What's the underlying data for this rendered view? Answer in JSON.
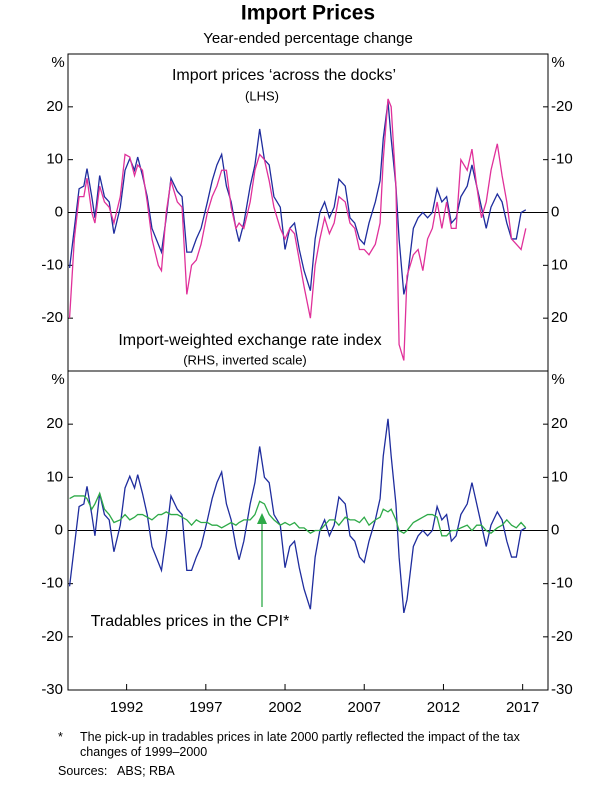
{
  "title": "Import Prices",
  "subtitle": "Year-ended percentage change",
  "notes": {
    "marker": "*",
    "footnote": "The pick-up in tradables prices in late 2000 partly reflected the impact of the tax changes of 1999–2000",
    "sources": "Sources:   ABS; RBA"
  },
  "chart_data": [
    {
      "type": "line",
      "ylabel": "%",
      "y2label": "%",
      "xlim": [
        1988.3,
        2018.6
      ],
      "ylim": [
        -30,
        30
      ],
      "yticks": [
        -20,
        -10,
        0,
        10,
        20
      ],
      "y2lim": [
        30,
        -30
      ],
      "y2ticks": [
        -20,
        -10,
        0,
        10,
        20
      ],
      "annotations": [
        "(LHS)",
        "(RHS, inverted scale)"
      ],
      "x": [
        1988.4,
        1988.7,
        1989.0,
        1989.3,
        1989.5,
        1989.8,
        1990.0,
        1990.3,
        1990.6,
        1990.9,
        1991.2,
        1991.6,
        1991.9,
        1992.2,
        1992.5,
        1992.7,
        1993.0,
        1993.3,
        1993.6,
        1994.0,
        1994.2,
        1994.5,
        1994.8,
        1995.2,
        1995.5,
        1995.8,
        1996.1,
        1996.4,
        1996.7,
        1997.1,
        1997.4,
        1997.7,
        1998.0,
        1998.3,
        1998.6,
        1998.9,
        1999.1,
        1999.4,
        1999.8,
        2000.1,
        2000.4,
        2000.7,
        2001.0,
        2001.3,
        2001.7,
        2002.0,
        2002.3,
        2002.6,
        2002.9,
        2003.2,
        2003.6,
        2003.9,
        2004.2,
        2004.5,
        2004.8,
        2005.1,
        2005.4,
        2005.8,
        2006.1,
        2006.4,
        2006.7,
        2007.0,
        2007.3,
        2007.7,
        2008.0,
        2008.2,
        2008.5,
        2008.7,
        2009.0,
        2009.2,
        2009.5,
        2009.7,
        2010.1,
        2010.4,
        2010.7,
        2011.0,
        2011.3,
        2011.6,
        2011.9,
        2012.2,
        2012.5,
        2012.8,
        2013.1,
        2013.5,
        2013.8,
        2014.1,
        2014.4,
        2014.7,
        2015.0,
        2015.4,
        2015.7,
        2016.0,
        2016.3,
        2016.6,
        2016.9,
        2017.2
      ],
      "series": [
        {
          "name": "Import prices ‘across the docks’",
          "color": "#1f2d9e",
          "values": [
            -10.5,
            -3,
            4.5,
            5,
            8.3,
            3,
            -1,
            7,
            3,
            2,
            -4,
            1,
            8,
            10.2,
            8,
            10.5,
            7,
            3,
            -3,
            -6,
            -7.5,
            -1,
            6.5,
            4,
            3,
            -7.5,
            -7.5,
            -5,
            -3,
            2,
            6,
            9,
            11,
            5,
            2,
            -3,
            -5.5,
            -2,
            5,
            9,
            15.8,
            10,
            9,
            3,
            1,
            -7,
            -3,
            -2,
            -7,
            -11,
            -14.8,
            -5,
            0,
            2,
            -1,
            1,
            6.3,
            5,
            -1,
            -2,
            -5,
            -6,
            -2,
            2,
            6,
            14,
            21,
            14,
            5,
            -5,
            -15.5,
            -13,
            -3,
            -1,
            0,
            -1,
            0,
            4.5,
            2,
            3,
            -2,
            -1,
            3,
            5,
            9,
            5,
            1,
            -3,
            1,
            3.5,
            2,
            -2,
            -5,
            -5,
            0,
            0.5
          ]
        },
        {
          "name": "Import-weighted exchange rate index",
          "color": "#e0319a",
          "axis": "y2",
          "values": [
            20,
            5,
            -3,
            -3,
            -6.5,
            0,
            2,
            -5,
            -2,
            -1,
            2,
            -3,
            -11,
            -10.5,
            -7,
            -9,
            -8,
            -2,
            5,
            10,
            11,
            0,
            -6,
            -2,
            -1,
            15.5,
            10,
            9,
            6,
            0,
            -3,
            -5,
            -8,
            -8,
            -1,
            3,
            2,
            3,
            -2,
            -8,
            -11,
            -10,
            -6,
            -1,
            3,
            5,
            3,
            4,
            9,
            14,
            20,
            10,
            5,
            1,
            4,
            2,
            -3,
            -2,
            2,
            3,
            7,
            7,
            8,
            6,
            2,
            -10,
            -21.5,
            -20,
            -5,
            25,
            28,
            12,
            8,
            7,
            11,
            5,
            3,
            -2,
            3,
            -2,
            3,
            3,
            -10,
            -8,
            -12,
            -5,
            1,
            -2,
            -8,
            -13,
            -7,
            -2,
            5,
            6,
            7,
            3
          ]
        }
      ]
    },
    {
      "type": "line",
      "ylabel": "%",
      "y2label": "%",
      "xlim": [
        1988.3,
        2018.6
      ],
      "xticks": [
        1992,
        1997,
        2002,
        2007,
        2012,
        2017
      ],
      "ylim": [
        -30,
        30
      ],
      "yticks": [
        -30,
        -20,
        -10,
        0,
        10,
        20
      ],
      "y2lim": [
        -30,
        30
      ],
      "y2ticks": [
        -30,
        -20,
        -10,
        0,
        10,
        20
      ],
      "x": [
        1988.4,
        1988.7,
        1989.0,
        1989.3,
        1989.5,
        1989.8,
        1990.0,
        1990.3,
        1990.6,
        1990.9,
        1991.2,
        1991.6,
        1991.9,
        1992.2,
        1992.5,
        1992.7,
        1993.0,
        1993.3,
        1993.6,
        1994.0,
        1994.2,
        1994.5,
        1994.8,
        1995.2,
        1995.5,
        1995.8,
        1996.1,
        1996.4,
        1996.7,
        1997.1,
        1997.4,
        1997.7,
        1998.0,
        1998.3,
        1998.6,
        1998.9,
        1999.1,
        1999.4,
        1999.8,
        2000.1,
        2000.4,
        2000.7,
        2001.0,
        2001.3,
        2001.7,
        2002.0,
        2002.3,
        2002.6,
        2002.9,
        2003.2,
        2003.6,
        2003.9,
        2004.2,
        2004.5,
        2004.8,
        2005.1,
        2005.4,
        2005.8,
        2006.1,
        2006.4,
        2006.7,
        2007.0,
        2007.3,
        2007.7,
        2008.0,
        2008.2,
        2008.5,
        2008.7,
        2009.0,
        2009.2,
        2009.5,
        2009.7,
        2010.1,
        2010.4,
        2010.7,
        2011.0,
        2011.3,
        2011.6,
        2011.9,
        2012.2,
        2012.5,
        2012.8,
        2013.1,
        2013.5,
        2013.8,
        2014.1,
        2014.4,
        2014.7,
        2015.0,
        2015.4,
        2015.7,
        2016.0,
        2016.3,
        2016.6,
        2016.9,
        2017.2
      ],
      "series": [
        {
          "color": "#1f2d9e",
          "values": [
            -10.5,
            -3,
            4.5,
            5,
            8.3,
            3,
            -1,
            7,
            3,
            2,
            -4,
            1,
            8,
            10.2,
            8,
            10.5,
            7,
            3,
            -3,
            -6,
            -7.5,
            -1,
            6.5,
            4,
            3,
            -7.5,
            -7.5,
            -5,
            -3,
            2,
            6,
            9,
            11,
            5,
            2,
            -3,
            -5.5,
            -2,
            5,
            9,
            15.8,
            10,
            9,
            3,
            1,
            -7,
            -3,
            -2,
            -7,
            -11,
            -14.8,
            -5,
            0,
            2,
            -1,
            1,
            6.3,
            5,
            -1,
            -2,
            -5,
            -6,
            -2,
            2,
            6,
            14,
            21,
            14,
            5,
            -5,
            -15.5,
            -13,
            -3,
            -1,
            0,
            -1,
            0,
            4.5,
            2,
            3,
            -2,
            -1,
            3,
            5,
            9,
            5,
            1,
            -3,
            1,
            3.5,
            2,
            -2,
            -5,
            -5,
            0,
            0.5
          ]
        },
        {
          "name": "Tradables prices in the CPI*",
          "color": "#2eaa48",
          "values": [
            6,
            6.5,
            6.5,
            6.5,
            6,
            4,
            5,
            7,
            4,
            3,
            1.5,
            2,
            3,
            2,
            2.5,
            3,
            3,
            2.5,
            2,
            3,
            3,
            3.5,
            3,
            3,
            2.5,
            2,
            1,
            2,
            1.5,
            1.5,
            1,
            1,
            0.5,
            1,
            1.5,
            1,
            1.5,
            2,
            2,
            3,
            5.5,
            5,
            3,
            2,
            1,
            1.5,
            1,
            1.5,
            0.5,
            0.5,
            -0.5,
            0,
            0,
            1,
            2,
            2,
            1,
            2.5,
            2,
            2,
            1.5,
            2.5,
            1,
            2,
            2.5,
            4,
            3.5,
            4,
            2,
            0,
            -0.5,
            0,
            1.5,
            2,
            2.5,
            3,
            3,
            2.5,
            -1,
            -1,
            0,
            0,
            0.5,
            1,
            0,
            1,
            1,
            0,
            -0.5,
            0.5,
            1,
            2,
            1,
            0.5,
            1.5,
            0.5
          ]
        }
      ]
    }
  ]
}
